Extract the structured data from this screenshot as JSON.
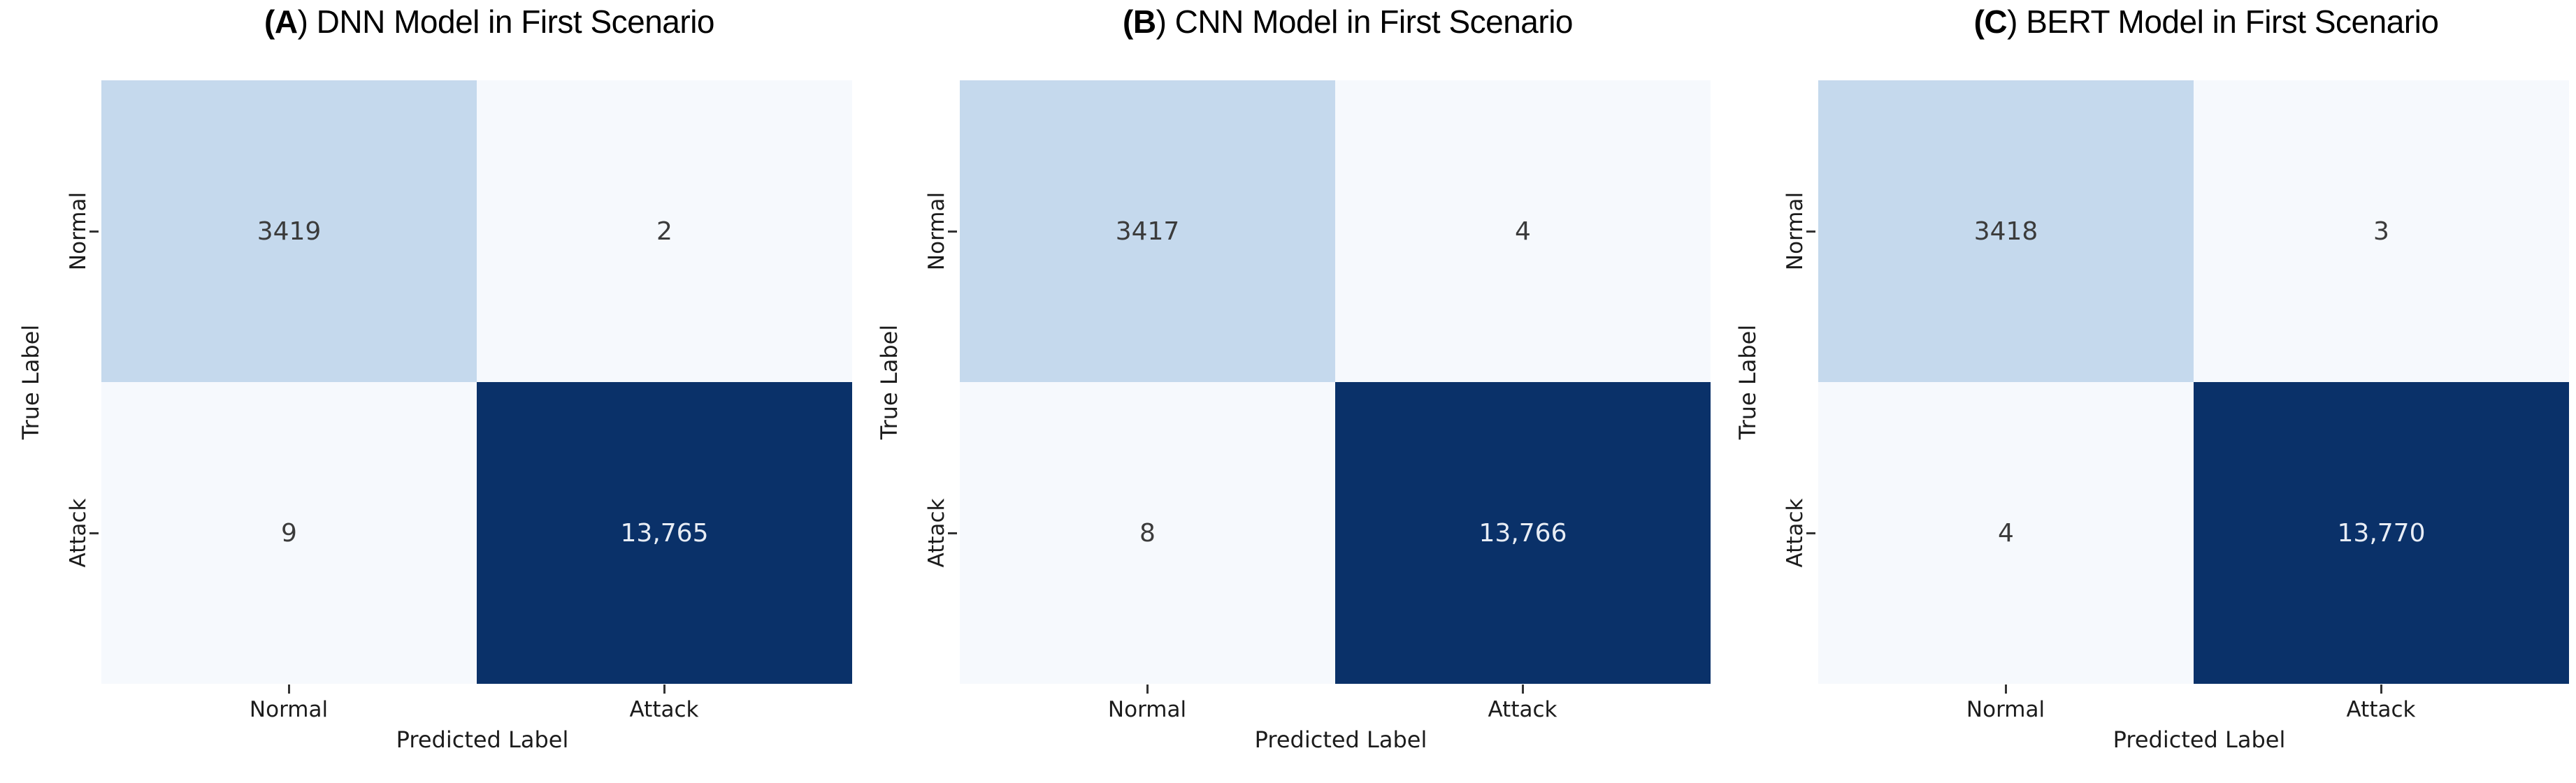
{
  "colors": {
    "cell_low": "#f6f9fd",
    "cell_mid": "#c5d9ed",
    "cell_high": "#0a3169",
    "annot_dark": "#3b3b3b",
    "annot_light": "#e8edf5",
    "axis_text": "#1c1c1c",
    "tick_mark": "#333333"
  },
  "chart_data": [
    {
      "type": "heatmap",
      "panel_letter": "A",
      "title_open": "(",
      "title_rest": ") DNN Model in First Scenario",
      "title": "(A) DNN Model in First Scenario",
      "xlabel": "Predicted Label",
      "ylabel": "True Label",
      "x_categories": [
        "Normal",
        "Attack"
      ],
      "y_categories": [
        "Normal",
        "Attack"
      ],
      "values": [
        [
          3419,
          2
        ],
        [
          9,
          13765
        ]
      ],
      "cell_labels": [
        [
          "3419",
          "2"
        ],
        [
          "9",
          "13,765"
        ]
      ],
      "colormap": "Blues",
      "legend": "none",
      "grid": "off"
    },
    {
      "type": "heatmap",
      "panel_letter": "B",
      "title_open": "(",
      "title_rest": ") CNN Model in First Scenario",
      "title": "(B) CNN Model in First Scenario",
      "xlabel": "Predicted Label",
      "ylabel": "True Label",
      "x_categories": [
        "Normal",
        "Attack"
      ],
      "y_categories": [
        "Normal",
        "Attack"
      ],
      "values": [
        [
          3417,
          4
        ],
        [
          8,
          13766
        ]
      ],
      "cell_labels": [
        [
          "3417",
          "4"
        ],
        [
          "8",
          "13,766"
        ]
      ],
      "colormap": "Blues",
      "legend": "none",
      "grid": "off"
    },
    {
      "type": "heatmap",
      "panel_letter": "C",
      "title_open": "(",
      "title_rest": ") BERT Model in First Scenario",
      "title": "(C) BERT Model in First Scenario",
      "xlabel": "Predicted Label",
      "ylabel": "True Label",
      "x_categories": [
        "Normal",
        "Attack"
      ],
      "y_categories": [
        "Normal",
        "Attack"
      ],
      "values": [
        [
          3418,
          3
        ],
        [
          4,
          13770
        ]
      ],
      "cell_labels": [
        [
          "3418",
          "3"
        ],
        [
          "4",
          "13,770"
        ]
      ],
      "colormap": "Blues",
      "legend": "none",
      "grid": "off"
    }
  ]
}
